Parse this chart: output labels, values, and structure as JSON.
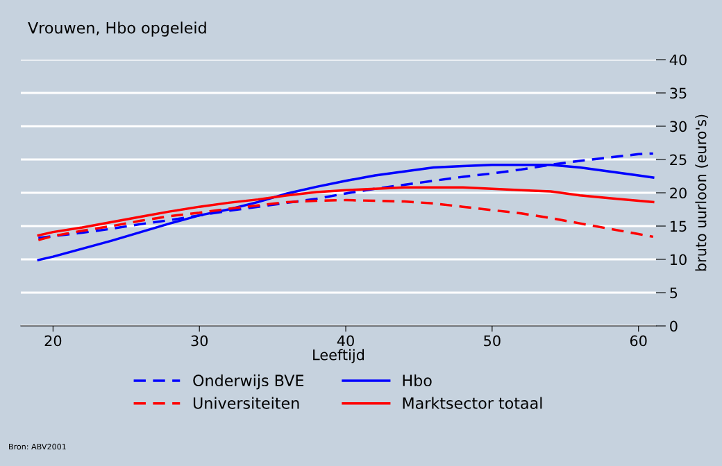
{
  "chart_data": {
    "type": "line",
    "title": "Vrouwen, Hbo opgeleid",
    "xlabel": "Leeftijd",
    "ylabel": "bruto uurloon (euro's)",
    "x": [
      19,
      20,
      22,
      24,
      26,
      28,
      30,
      32,
      34,
      36,
      38,
      40,
      42,
      44,
      46,
      48,
      50,
      52,
      54,
      56,
      58,
      60,
      61
    ],
    "series": [
      {
        "name": "Onderwijs BVE",
        "color": "#0000ff",
        "line_style": "dashed",
        "values": [
          13.2,
          13.5,
          14.0,
          14.6,
          15.3,
          15.9,
          16.6,
          17.3,
          17.9,
          18.5,
          19.1,
          19.9,
          20.6,
          21.2,
          21.8,
          22.4,
          22.9,
          23.5,
          24.2,
          24.8,
          25.3,
          25.8,
          25.9
        ]
      },
      {
        "name": "Hbo",
        "color": "#0000ff",
        "line_style": "solid",
        "values": [
          9.9,
          10.4,
          11.6,
          12.8,
          14.1,
          15.4,
          16.6,
          17.5,
          18.6,
          19.9,
          20.9,
          21.8,
          22.6,
          23.2,
          23.8,
          24.0,
          24.2,
          24.2,
          24.2,
          23.8,
          23.2,
          22.6,
          22.3
        ]
      },
      {
        "name": "Universiteiten",
        "color": "#ff0000",
        "line_style": "dashed",
        "values": [
          12.9,
          13.5,
          14.3,
          15.0,
          15.8,
          16.5,
          17.0,
          17.6,
          18.1,
          18.6,
          18.8,
          18.9,
          18.8,
          18.7,
          18.4,
          17.9,
          17.4,
          16.9,
          16.2,
          15.4,
          14.6,
          13.8,
          13.4
        ]
      },
      {
        "name": "Marktsector totaal",
        "color": "#ff0000",
        "line_style": "solid",
        "values": [
          13.6,
          14.1,
          14.8,
          15.6,
          16.4,
          17.2,
          17.9,
          18.5,
          19.0,
          19.6,
          20.1,
          20.4,
          20.6,
          20.8,
          20.8,
          20.8,
          20.6,
          20.4,
          20.2,
          19.6,
          19.2,
          18.8,
          18.6
        ]
      }
    ],
    "xlim": [
      17.8,
      61.2
    ],
    "xticks": [
      20,
      30,
      40,
      50,
      60
    ],
    "ylim": [
      0,
      40
    ],
    "yticks": [
      0,
      5,
      10,
      15,
      20,
      25,
      30,
      35,
      40
    ],
    "grid": "y",
    "legend": "bottom",
    "annotations": [
      "Bron: ABV2001"
    ]
  }
}
